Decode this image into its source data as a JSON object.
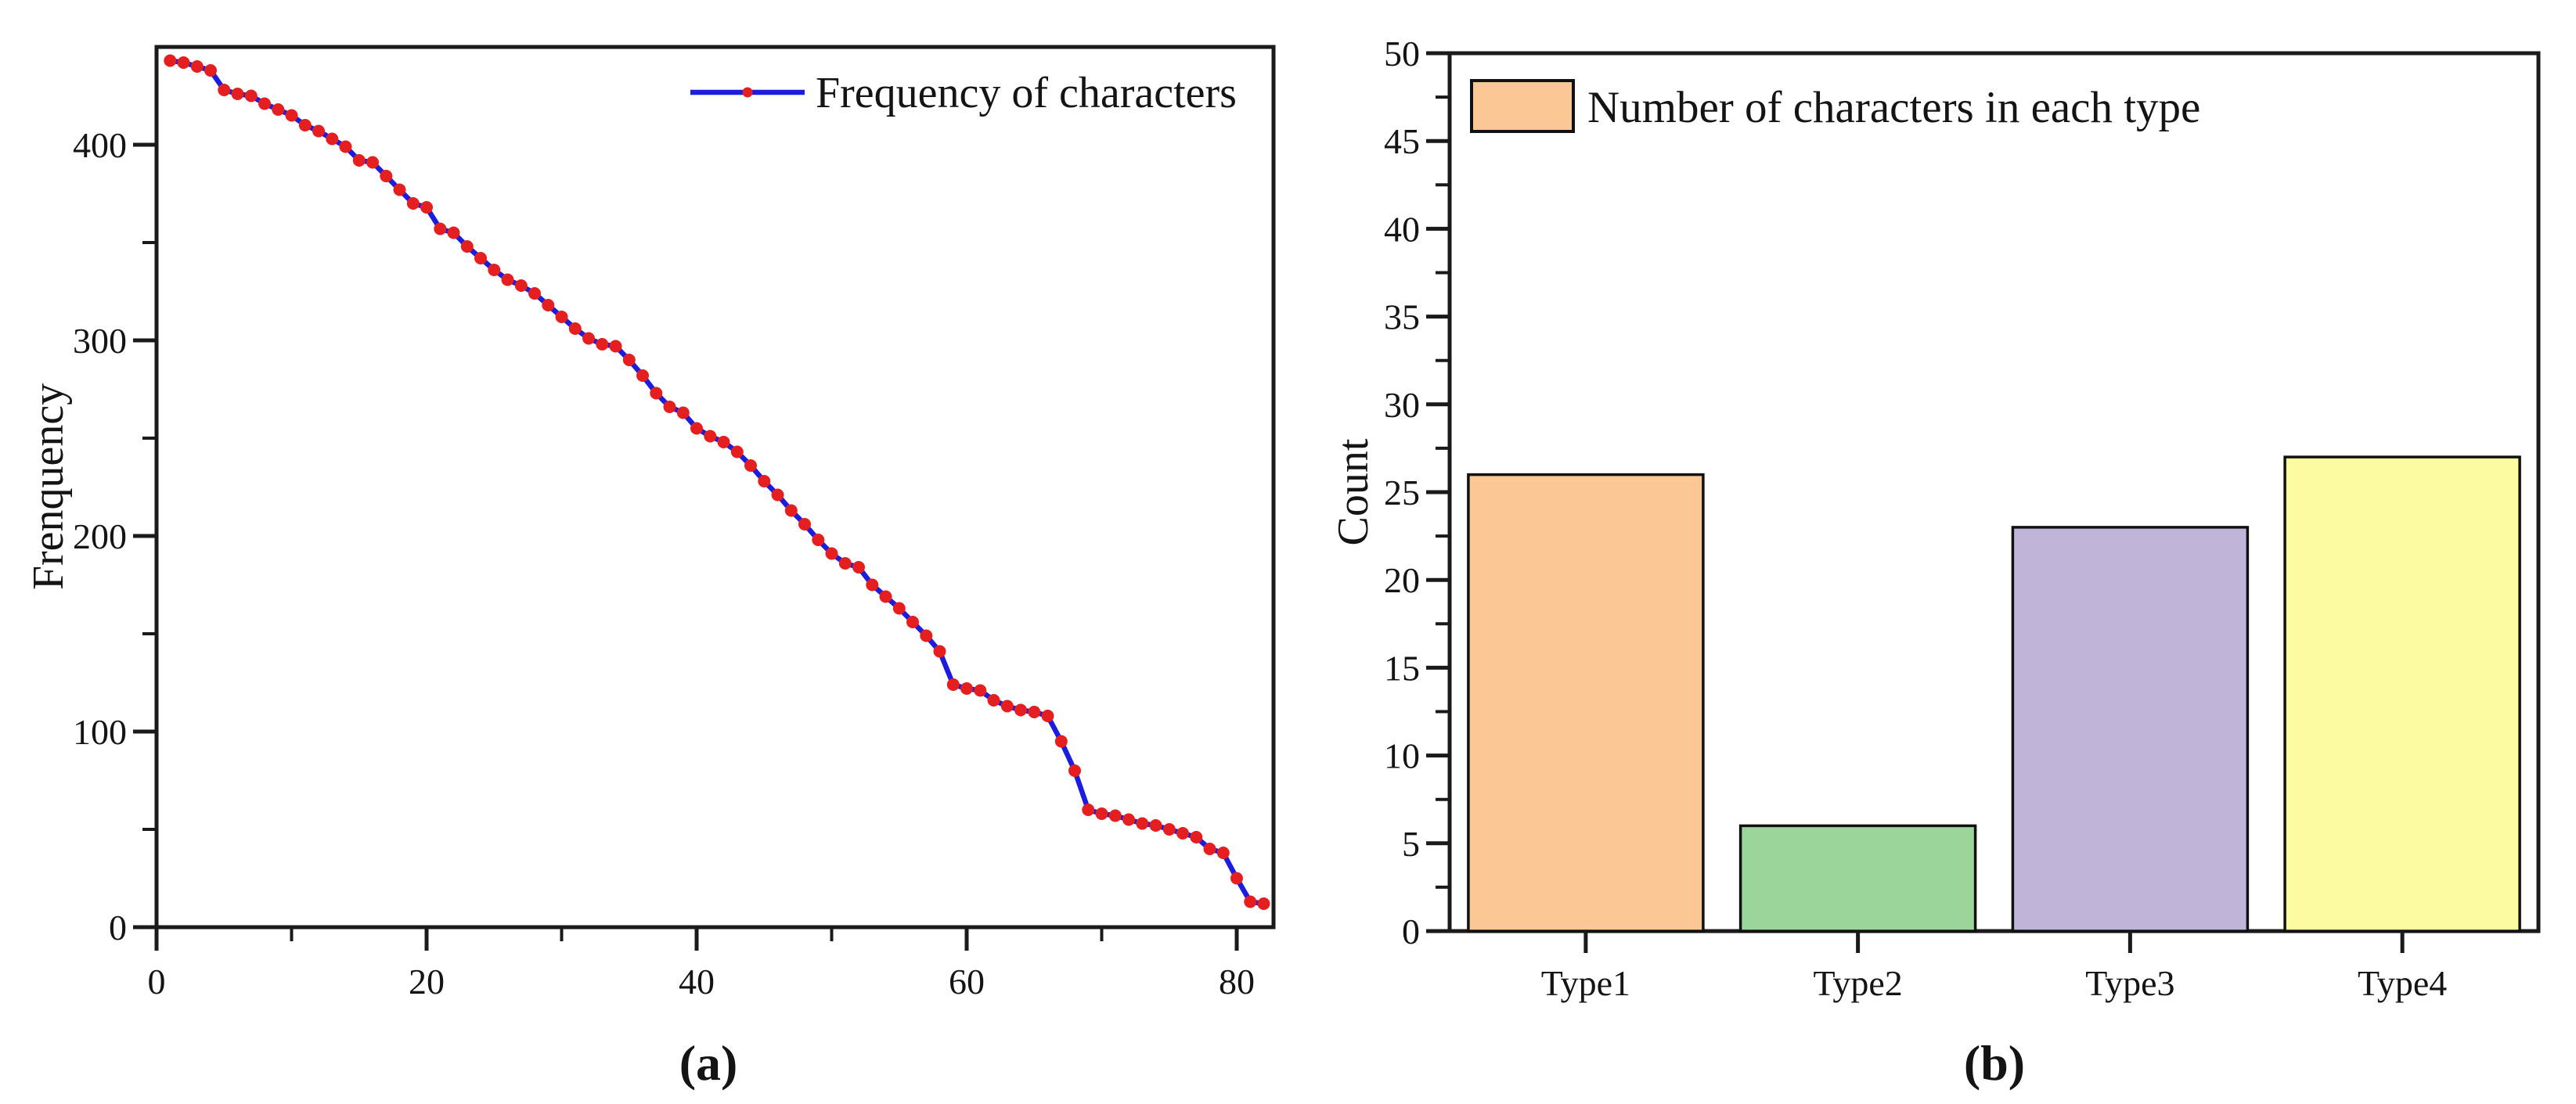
{
  "figure": {
    "background": "#ffffff",
    "axis_color": "#1a1a1a"
  },
  "chart_data": [
    {
      "type": "line",
      "panel_label": "(a)",
      "title": "",
      "xlabel": "",
      "ylabel": "Frenquency",
      "xlim": [
        0,
        82.7
      ],
      "ylim": [
        0,
        450
      ],
      "xticks": [
        0,
        20,
        40,
        60,
        80
      ],
      "xticks_minor": [
        10,
        30,
        50,
        70
      ],
      "yticks": [
        0,
        100,
        200,
        300,
        400
      ],
      "yticks_minor": [
        50,
        150,
        250,
        350
      ],
      "grid": false,
      "legend_position": "top-right-inside",
      "series": [
        {
          "name": "Frequency of characters",
          "line_color": "#1c1cdf",
          "marker_color": "#e51f1f",
          "x_rule": {
            "start": 1,
            "step": 1,
            "count": 82
          },
          "y": [
            443,
            442,
            440,
            438,
            428,
            426,
            425,
            421,
            418,
            415,
            410,
            407,
            403,
            399,
            392,
            391,
            384,
            377,
            370,
            368,
            357,
            355,
            348,
            342,
            336,
            331,
            328,
            324,
            318,
            312,
            306,
            301,
            298,
            297,
            290,
            282,
            273,
            266,
            263,
            255,
            251,
            248,
            243,
            236,
            228,
            221,
            213,
            206,
            198,
            191,
            186,
            184,
            175,
            169,
            163,
            156,
            149,
            141,
            124,
            122,
            121,
            116,
            113,
            111,
            110,
            108,
            95,
            80,
            60,
            58,
            57,
            55,
            53,
            52,
            50,
            48,
            46,
            40,
            38,
            25,
            13,
            12
          ]
        }
      ]
    },
    {
      "type": "bar",
      "panel_label": "(b)",
      "title": "",
      "xlabel": "",
      "ylabel": "Count",
      "ylim": [
        0,
        50
      ],
      "yticks": [
        0,
        5,
        10,
        15,
        20,
        25,
        30,
        35,
        40,
        45,
        50
      ],
      "ytick_minor_step": 2.5,
      "grid": false,
      "legend_label": "Number of characters in each type",
      "legend_swatch_color": "#fac795",
      "categories": [
        "Type1",
        "Type2",
        "Type3",
        "Type4"
      ],
      "values": [
        26,
        6,
        23,
        27
      ],
      "bar_colors": [
        "#fac795",
        "#9cd59a",
        "#c0b4d8",
        "#fdfba2"
      ],
      "bar_border_color": "#111111"
    }
  ]
}
